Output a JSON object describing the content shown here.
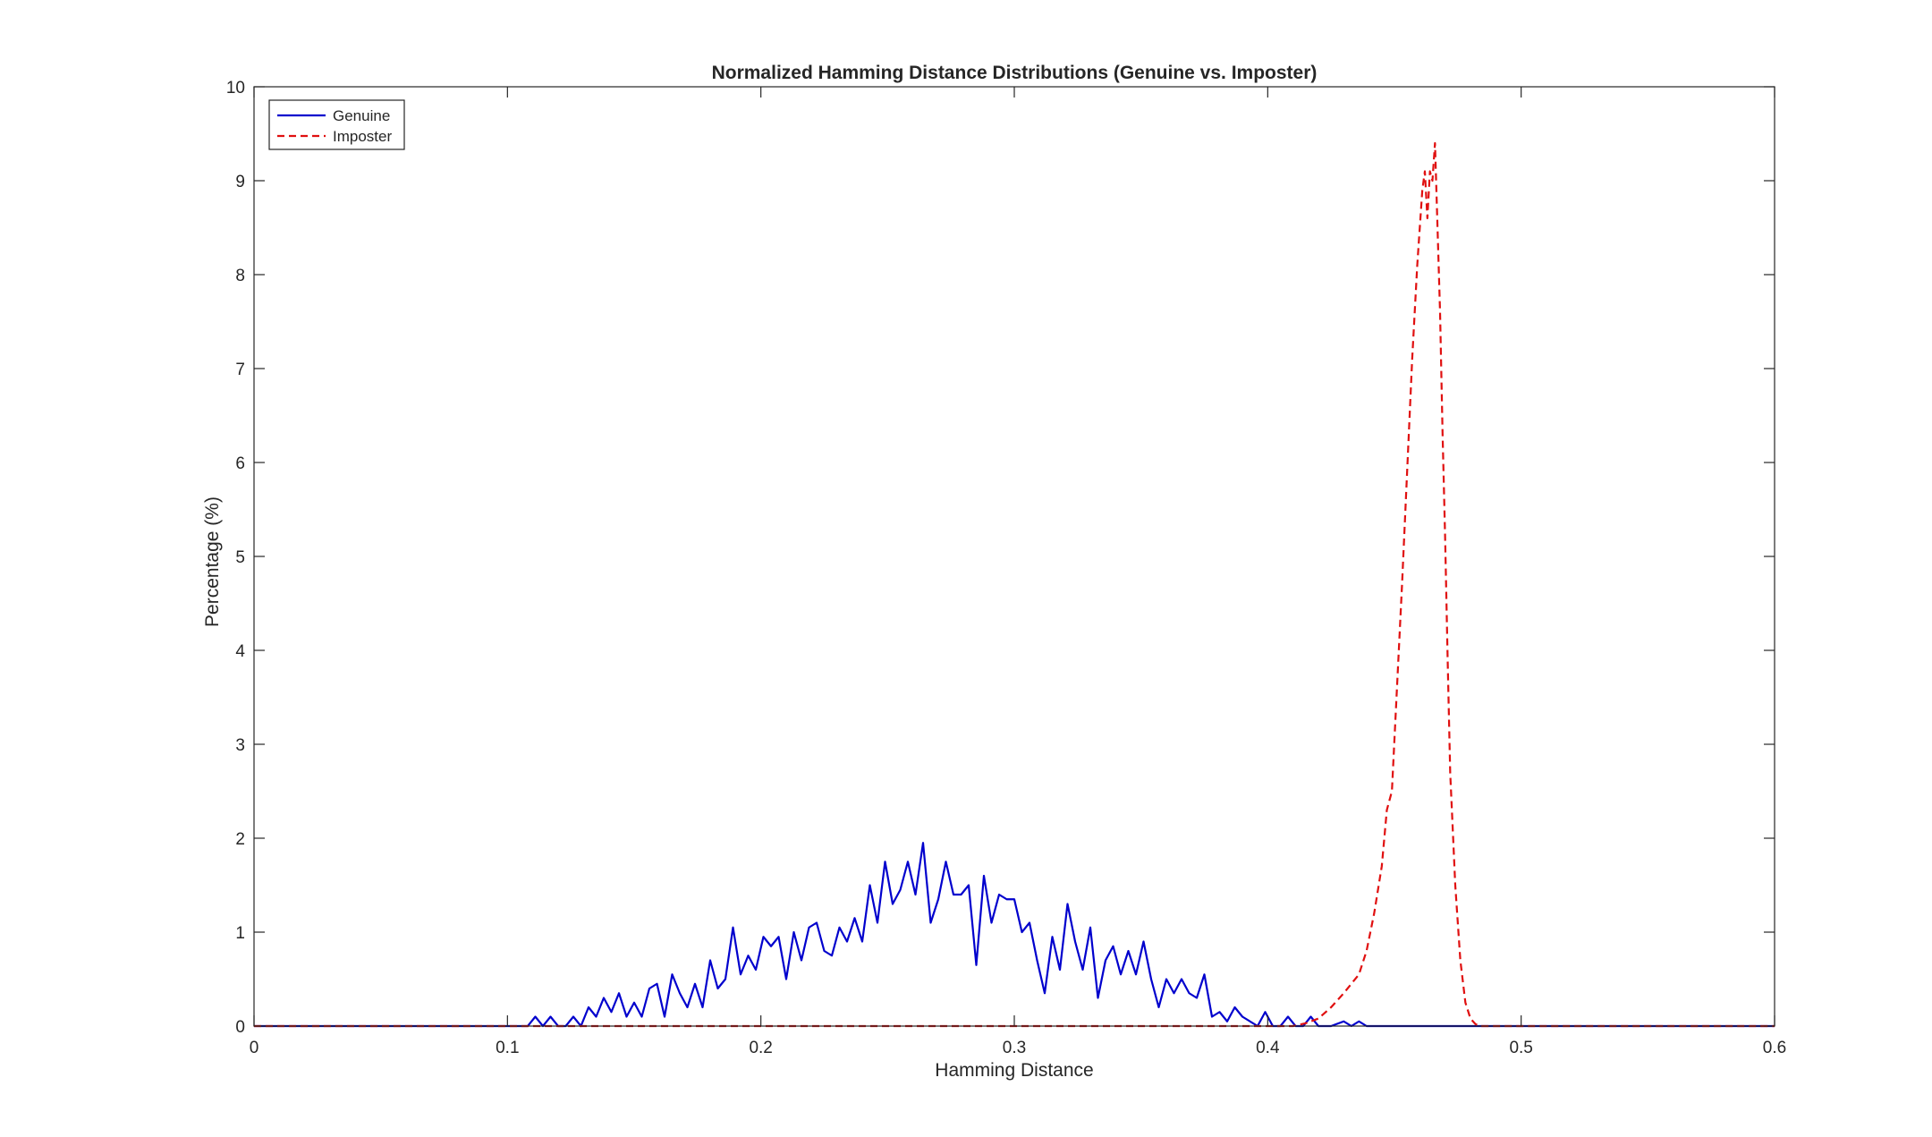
{
  "chart_data": {
    "type": "line",
    "title": "Normalized Hamming Distance Distributions (Genuine vs. Imposter)",
    "xlabel": "Hamming Distance",
    "ylabel": "Percentage (%)",
    "xlim": [
      0,
      0.6
    ],
    "ylim": [
      0,
      10
    ],
    "xticks": [
      0,
      0.1,
      0.2,
      0.3,
      0.4,
      0.5,
      0.6
    ],
    "xtick_labels": [
      "0",
      "0.1",
      "0.2",
      "0.3",
      "0.4",
      "0.5",
      "0.6"
    ],
    "yticks": [
      0,
      1,
      2,
      3,
      4,
      5,
      6,
      7,
      8,
      9,
      10
    ],
    "ytick_labels": [
      "0",
      "1",
      "2",
      "3",
      "4",
      "5",
      "6",
      "7",
      "8",
      "9",
      "10"
    ],
    "grid": false,
    "box": true,
    "legend_position": "top-left",
    "series": [
      {
        "name": "Genuine",
        "color": "#0000CD",
        "line_style": "solid",
        "x": [
          0,
          0.1,
          0.108,
          0.111,
          0.114,
          0.117,
          0.12,
          0.123,
          0.126,
          0.129,
          0.132,
          0.135,
          0.138,
          0.141,
          0.144,
          0.147,
          0.15,
          0.153,
          0.156,
          0.159,
          0.162,
          0.165,
          0.168,
          0.171,
          0.174,
          0.177,
          0.18,
          0.183,
          0.186,
          0.189,
          0.192,
          0.195,
          0.198,
          0.201,
          0.204,
          0.207,
          0.21,
          0.213,
          0.216,
          0.219,
          0.222,
          0.225,
          0.228,
          0.231,
          0.234,
          0.237,
          0.24,
          0.243,
          0.246,
          0.249,
          0.252,
          0.255,
          0.258,
          0.261,
          0.264,
          0.267,
          0.27,
          0.273,
          0.276,
          0.279,
          0.282,
          0.285,
          0.288,
          0.291,
          0.294,
          0.297,
          0.3,
          0.303,
          0.306,
          0.309,
          0.312,
          0.315,
          0.318,
          0.321,
          0.324,
          0.327,
          0.33,
          0.333,
          0.336,
          0.339,
          0.342,
          0.345,
          0.348,
          0.351,
          0.354,
          0.357,
          0.36,
          0.363,
          0.366,
          0.369,
          0.372,
          0.375,
          0.378,
          0.381,
          0.384,
          0.387,
          0.39,
          0.393,
          0.396,
          0.399,
          0.402,
          0.405,
          0.408,
          0.411,
          0.414,
          0.417,
          0.42,
          0.425,
          0.43,
          0.433,
          0.436,
          0.439,
          0.442,
          0.45,
          0.6
        ],
        "y": [
          0,
          0,
          0,
          0.1,
          0,
          0.1,
          0,
          0,
          0.1,
          0,
          0.2,
          0.1,
          0.3,
          0.15,
          0.35,
          0.1,
          0.25,
          0.1,
          0.4,
          0.45,
          0.1,
          0.55,
          0.35,
          0.2,
          0.45,
          0.2,
          0.7,
          0.4,
          0.5,
          1.05,
          0.55,
          0.75,
          0.6,
          0.95,
          0.85,
          0.95,
          0.5,
          1.0,
          0.7,
          1.05,
          1.1,
          0.8,
          0.75,
          1.05,
          0.9,
          1.15,
          0.9,
          1.5,
          1.1,
          1.75,
          1.3,
          1.45,
          1.75,
          1.4,
          1.95,
          1.1,
          1.35,
          1.75,
          1.4,
          1.4,
          1.5,
          0.65,
          1.6,
          1.1,
          1.4,
          1.35,
          1.35,
          1.0,
          1.1,
          0.7,
          0.35,
          0.95,
          0.6,
          1.3,
          0.9,
          0.6,
          1.05,
          0.3,
          0.7,
          0.85,
          0.55,
          0.8,
          0.55,
          0.9,
          0.5,
          0.2,
          0.5,
          0.35,
          0.5,
          0.35,
          0.3,
          0.55,
          0.1,
          0.15,
          0.05,
          0.2,
          0.1,
          0.05,
          0,
          0.15,
          0,
          0,
          0.1,
          0,
          0,
          0.1,
          0,
          0,
          0.05,
          0,
          0.05,
          0,
          0,
          0,
          0
        ]
      },
      {
        "name": "Imposter",
        "color": "#E01010",
        "line_style": "dashed",
        "x": [
          0,
          0.41,
          0.415,
          0.42,
          0.425,
          0.43,
          0.433,
          0.436,
          0.439,
          0.442,
          0.445,
          0.447,
          0.449,
          0.451,
          0.453,
          0.455,
          0.457,
          0.459,
          0.461,
          0.462,
          0.463,
          0.464,
          0.465,
          0.466,
          0.467,
          0.468,
          0.469,
          0.47,
          0.471,
          0.472,
          0.474,
          0.476,
          0.478,
          0.48,
          0.482,
          0.484,
          0.487,
          0.49,
          0.6
        ],
        "y": [
          0,
          0,
          0.03,
          0.08,
          0.2,
          0.35,
          0.45,
          0.55,
          0.8,
          1.2,
          1.7,
          2.3,
          2.5,
          3.6,
          4.7,
          5.9,
          7.1,
          8.1,
          8.9,
          9.1,
          8.6,
          9.1,
          9.0,
          9.4,
          8.5,
          7.6,
          6.3,
          5.2,
          3.9,
          2.7,
          1.5,
          0.7,
          0.25,
          0.08,
          0.02,
          0,
          0,
          0,
          0
        ]
      }
    ]
  }
}
